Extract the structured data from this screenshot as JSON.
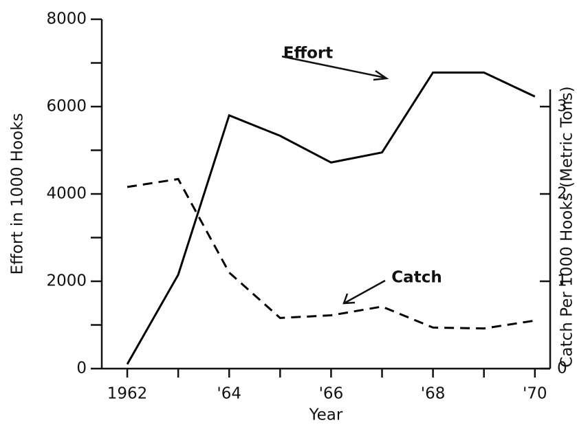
{
  "chart_data": {
    "type": "line",
    "xlabel": "Year",
    "ylabel": "Effort in 1000 Hooks",
    "y2label": "Catch Per 1000 Hooks (Metric Tons)",
    "x": [
      1962,
      1963,
      1964,
      1965,
      1966,
      1967,
      1968,
      1969,
      1970
    ],
    "xlim": [
      1961.5,
      1970.3
    ],
    "xticks": [
      {
        "value": 1962,
        "label": "1962"
      },
      {
        "value": 1964,
        "label": "'64"
      },
      {
        "value": 1966,
        "label": "'66"
      },
      {
        "value": 1968,
        "label": "'68"
      },
      {
        "value": 1970,
        "label": "'70"
      }
    ],
    "xminorticks": [
      1963,
      1965,
      1967,
      1969
    ],
    "ylim": [
      0,
      8000
    ],
    "yticks": [
      0,
      2000,
      4000,
      6000,
      8000
    ],
    "yminorticks": [
      1000,
      3000,
      5000,
      7000
    ],
    "y2lim": [
      0,
      4
    ],
    "y2ticks": [
      0,
      1,
      2,
      3
    ],
    "series": [
      {
        "name": "Effort",
        "color": "#000000",
        "dashed": false,
        "values": [
          100,
          2150,
          5800,
          5330,
          4720,
          4950,
          6780,
          6780,
          6230
        ]
      },
      {
        "name": "Catch",
        "color": "#000000",
        "dashed": true,
        "axis": "y2",
        "values": [
          2.08,
          2.17,
          1.1,
          0.58,
          0.61,
          0.71,
          0.47,
          0.46,
          0.55
        ]
      }
    ]
  }
}
